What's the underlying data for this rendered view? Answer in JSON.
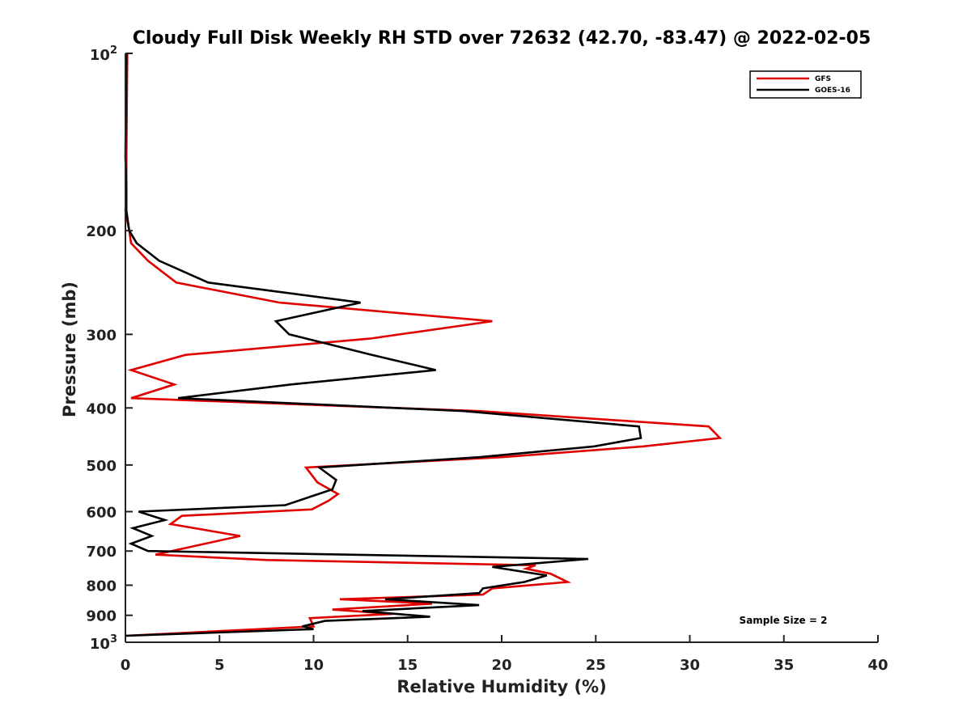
{
  "chart_data": {
    "type": "line",
    "title": "Cloudy Full Disk Weekly RH STD over 72632 (42.70, -83.47) @ 2022-02-05",
    "xlabel": "Relative Humidity (%)",
    "ylabel": "Pressure (mb)",
    "xlim": [
      0,
      40
    ],
    "ylim": [
      100,
      1000
    ],
    "y_scale": "log",
    "y_reversed": true,
    "x_ticks": [
      0,
      5,
      10,
      15,
      20,
      25,
      30,
      35,
      40
    ],
    "x_tick_labels": [
      "0",
      "5",
      "10",
      "15",
      "20",
      "25",
      "30",
      "35",
      "40"
    ],
    "y_ticks": [
      200,
      300,
      400,
      500,
      600,
      700,
      800,
      900
    ],
    "y_tick_labels": [
      "200",
      "300",
      "400",
      "500",
      "600",
      "700",
      "800",
      "900"
    ],
    "y_end_labels": {
      "top_base": "10",
      "top_exp": "2",
      "bottom_base": "10",
      "bottom_exp": "3"
    },
    "grid": false,
    "legend_position": "top-right",
    "annotation": "Sample Size = 2",
    "series": [
      {
        "name": "GFS",
        "color": "#e00000",
        "x": [
          0.1,
          0.05,
          0.05,
          0.0,
          0.2,
          0.3,
          1.2,
          2.7,
          8.2,
          19.5,
          13.0,
          3.2,
          0.3,
          2.6,
          0.3,
          18.8,
          31.0,
          31.6,
          27.5,
          20.0,
          9.6,
          10.2,
          11.3,
          10.8,
          9.9,
          3.0,
          2.4,
          6.1,
          3.8,
          1.6,
          7.5,
          21.8,
          21.3,
          22.6,
          23.5,
          19.5,
          19.0,
          11.4,
          16.3,
          11.0,
          14.2,
          9.8,
          10.0,
          0.0
        ],
        "y": [
          100,
          150,
          170,
          185,
          200,
          210,
          225,
          245,
          265,
          285,
          305,
          325,
          345,
          365,
          385,
          405,
          430,
          450,
          465,
          485,
          505,
          535,
          560,
          575,
          595,
          610,
          630,
          660,
          685,
          710,
          725,
          740,
          750,
          765,
          790,
          810,
          830,
          845,
          860,
          880,
          895,
          910,
          940,
          975
        ]
      },
      {
        "name": "GOES-16",
        "color": "#000000",
        "x": [
          0.05,
          0.0,
          0.05,
          0.05,
          0.2,
          0.6,
          1.8,
          4.4,
          12.5,
          8.0,
          8.7,
          13.1,
          16.5,
          8.8,
          2.8,
          18.0,
          27.3,
          27.4,
          24.9,
          18.8,
          10.3,
          11.2,
          11.0,
          9.9,
          8.5,
          0.7,
          2.1,
          0.4,
          1.4,
          0.3,
          1.2,
          24.6,
          19.5,
          22.4,
          21.2,
          19.0,
          18.8,
          13.8,
          18.8,
          12.6,
          16.2,
          10.6,
          9.4,
          10.0,
          0.0
        ],
        "y": [
          100,
          150,
          170,
          185,
          200,
          210,
          225,
          245,
          265,
          285,
          300,
          325,
          345,
          365,
          385,
          405,
          430,
          450,
          465,
          485,
          505,
          530,
          550,
          565,
          585,
          600,
          620,
          640,
          660,
          680,
          700,
          722,
          745,
          770,
          790,
          810,
          825,
          845,
          865,
          885,
          905,
          920,
          940,
          950,
          975
        ]
      }
    ]
  }
}
